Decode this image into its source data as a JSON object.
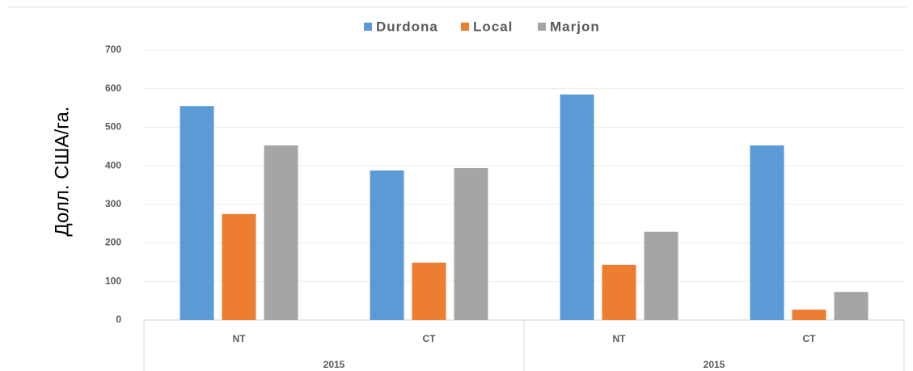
{
  "chart_data": {
    "type": "bar",
    "y_label": "Долл. США/га.",
    "categories": [
      "NT",
      "CT",
      "NT",
      "CT"
    ],
    "group_labels": [
      "2015",
      "2015"
    ],
    "series": [
      {
        "name": "Durdona",
        "color": "#5b9bd5",
        "values": [
          555,
          388,
          585,
          453
        ]
      },
      {
        "name": "Local",
        "color": "#ed7d31",
        "values": [
          275,
          149,
          143,
          27
        ]
      },
      {
        "name": "Marjon",
        "color": "#a5a5a5",
        "values": [
          453,
          394,
          229,
          73
        ]
      }
    ],
    "ylim": [
      0,
      700
    ],
    "yticks": [
      0,
      100,
      200,
      300,
      400,
      500,
      600,
      700
    ],
    "grid": true,
    "legend": "top"
  }
}
